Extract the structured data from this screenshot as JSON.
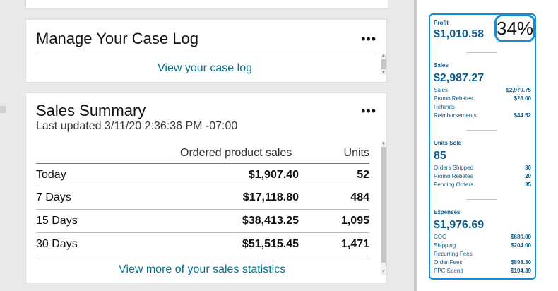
{
  "case_log": {
    "title": "Manage Your Case Log",
    "menu": "•••",
    "link": "View your case log"
  },
  "sales_summary": {
    "title": "Sales Summary",
    "updated": "Last updated 3/11/20 2:36:36 PM -07:00",
    "menu": "•••",
    "columns": [
      "Ordered product sales",
      "Units"
    ],
    "rows": [
      {
        "label": "Today",
        "sales": "$1,907.40",
        "units": "52"
      },
      {
        "label": "7 Days",
        "sales": "$17,118.80",
        "units": "484"
      },
      {
        "label": "15 Days",
        "sales": "$38,413.25",
        "units": "1,095"
      },
      {
        "label": "30 Days",
        "sales": "$51,515.45",
        "units": "1,471"
      }
    ],
    "link": "View more of your sales statistics"
  },
  "panel": {
    "percent": "34%",
    "profit": {
      "label": "Profit",
      "value": "$1,010.58"
    },
    "sales": {
      "label": "Sales",
      "value": "$2,987.27",
      "lines": [
        {
          "k": "Sales",
          "v": "$2,970.75"
        },
        {
          "k": "Promo Rebates",
          "v": "$28.00"
        },
        {
          "k": "Refunds",
          "v": "—"
        },
        {
          "k": "Reimbursements",
          "v": "$44.52"
        }
      ]
    },
    "units": {
      "label": "Units Sold",
      "value": "85",
      "lines": [
        {
          "k": "Orders Shipped",
          "v": "30"
        },
        {
          "k": "Promo Rebates",
          "v": "20"
        },
        {
          "k": "Pending Orders",
          "v": "35"
        }
      ]
    },
    "expenses": {
      "label": "Expenses",
      "value": "$1,976.69",
      "lines": [
        {
          "k": "COG",
          "v": "$680.00"
        },
        {
          "k": "Shipping",
          "v": "$204.00"
        },
        {
          "k": "Recurring Fees",
          "v": "—"
        },
        {
          "k": "Order Fees",
          "v": "$898.30"
        },
        {
          "k": "PPC Spend",
          "v": "$194.39"
        }
      ]
    }
  },
  "colors": {
    "link": "#00758a",
    "panel_text": "#0f5c8a",
    "panel_border": "#1a8bd0"
  }
}
